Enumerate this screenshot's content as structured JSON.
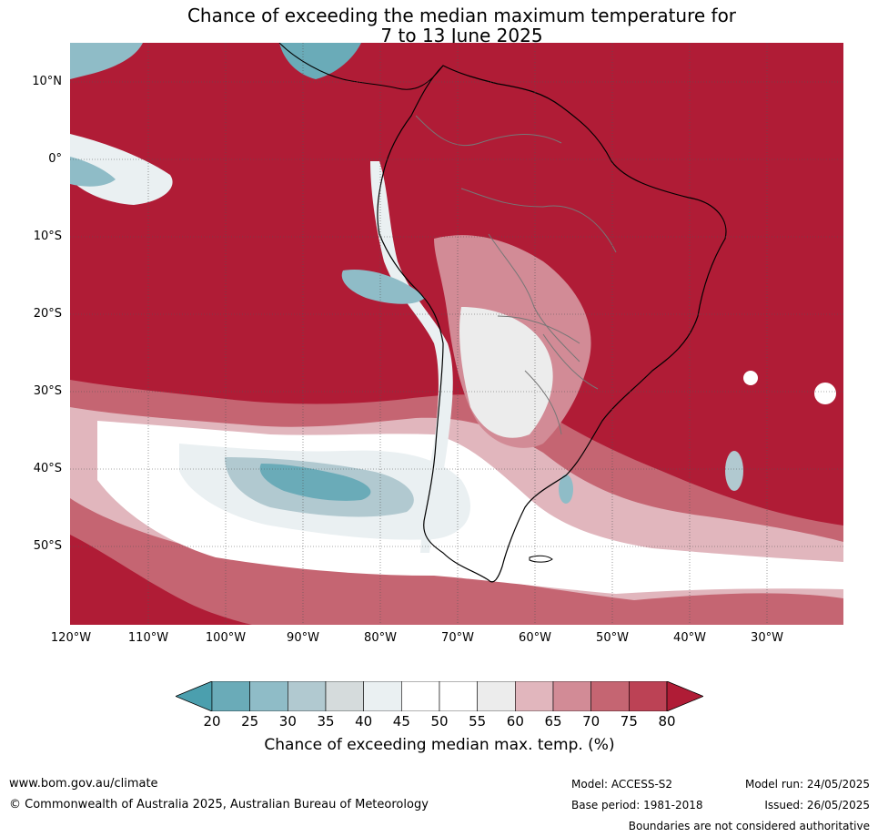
{
  "title": {
    "line1": "Chance of exceeding the median maximum temperature for",
    "line2": "7 to 13 June 2025"
  },
  "map": {
    "latitude_labels": [
      "10°N",
      "0°",
      "10°S",
      "20°S",
      "30°S",
      "40°S",
      "50°S"
    ],
    "longitude_labels": [
      "120°W",
      "110°W",
      "100°W",
      "90°W",
      "80°W",
      "70°W",
      "60°W",
      "50°W",
      "40°W",
      "30°W"
    ],
    "background_color": "#b01c36"
  },
  "colorbar": {
    "ticks": [
      "20",
      "25",
      "30",
      "35",
      "40",
      "45",
      "50",
      "55",
      "60",
      "65",
      "70",
      "75",
      "80"
    ],
    "colors": [
      "#6aabb8",
      "#8fbcc7",
      "#b1c9d0",
      "#d5dbdc",
      "#eaf0f2",
      "#ffffff",
      "#ffffff",
      "#ececec",
      "#e1b6bd",
      "#d28b96",
      "#c56572",
      "#bc4255"
    ],
    "below_color": "#4b9fae",
    "above_color": "#b01c36",
    "label": "Chance of exceeding median max. temp. (%)"
  },
  "footer": {
    "website": "www.bom.gov.au/climate",
    "copyright": "© Commonwealth of Australia 2025, Australian Bureau of Meteorology",
    "model": "Model: ACCESS-S2",
    "base_period": "Base period: 1981-2018",
    "model_run": "Model run: 24/05/2025",
    "issued": "Issued: 26/05/2025",
    "disclaimer": "Boundaries are not considered authoritative"
  }
}
